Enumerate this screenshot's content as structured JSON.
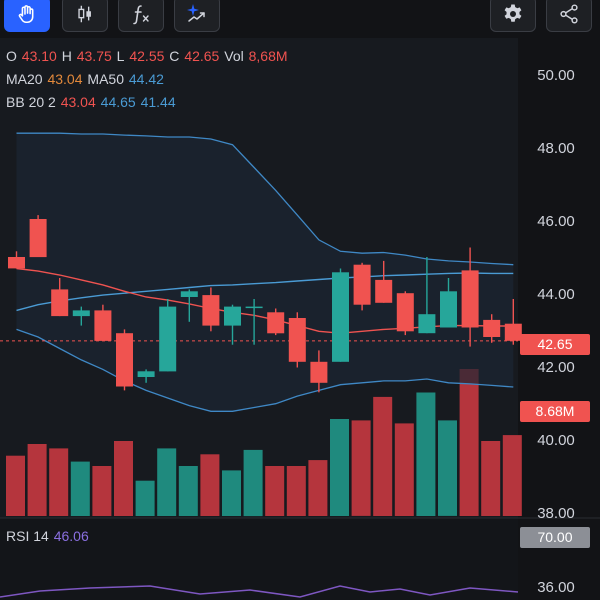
{
  "toolbar": {
    "icons": [
      "hand-pointer-icon",
      "candlestick-chart-icon",
      "function-icon",
      "ai-sparkle-icon",
      "gear-icon",
      "share-icon"
    ]
  },
  "legend": {
    "ohlc": {
      "o_label": "O",
      "o": "43.10",
      "h_label": "H",
      "h": "43.75",
      "l_label": "L",
      "l": "42.55",
      "c_label": "C",
      "c": "42.65",
      "vol_label": "Vol",
      "vol": "8,68M"
    },
    "ma": {
      "ma20_label": "MA20",
      "ma20": "43.04",
      "ma50_label": "MA50",
      "ma50": "44.42"
    },
    "bb": {
      "label": "BB 20 2",
      "middle": "43.04",
      "upper": "44.65",
      "lower": "41.44"
    },
    "rsi": {
      "label": "RSI 14",
      "value": "46.06"
    }
  },
  "price_axis": {
    "ticks": [
      "50.00",
      "48.00",
      "46.00",
      "44.00",
      "42.00",
      "40.00",
      "38.00"
    ],
    "last_price_tag": "42.65",
    "volume_tag": "8.68M"
  },
  "rsi_axis": {
    "ticks": [
      "70.00",
      "36.00"
    ]
  },
  "colors": {
    "up": "#26a69a",
    "down": "#f05350",
    "vol_up": "#1f8a7e",
    "vol_down": "#b5353d",
    "ma20": "#e3893b",
    "ma50": "#4a9bd4",
    "bollinger": "#3f88c5",
    "bb_mid": "#ef5350",
    "rsi": "#7e57c2"
  },
  "chart_data": {
    "type": "candlestick",
    "ylim": [
      38,
      50.6
    ],
    "candles": [
      {
        "o": 44.85,
        "h": 45.0,
        "l": 44.55,
        "c": 44.55
      },
      {
        "o": 45.85,
        "h": 45.95,
        "l": 44.85,
        "c": 44.85
      },
      {
        "o": 44.0,
        "h": 44.3,
        "l": 43.3,
        "c": 43.3
      },
      {
        "o": 43.3,
        "h": 43.55,
        "l": 43.05,
        "c": 43.45
      },
      {
        "o": 43.45,
        "h": 43.6,
        "l": 42.65,
        "c": 42.65
      },
      {
        "o": 42.85,
        "h": 42.95,
        "l": 41.35,
        "c": 41.45
      },
      {
        "o": 41.7,
        "h": 41.9,
        "l": 41.55,
        "c": 41.85
      },
      {
        "o": 41.85,
        "h": 43.75,
        "l": 41.85,
        "c": 43.55
      },
      {
        "o": 43.8,
        "h": 44.0,
        "l": 43.15,
        "c": 43.95
      },
      {
        "o": 43.85,
        "h": 44.05,
        "l": 42.9,
        "c": 43.05
      },
      {
        "o": 43.05,
        "h": 43.6,
        "l": 42.55,
        "c": 43.55
      },
      {
        "o": 43.55,
        "h": 43.75,
        "l": 42.55,
        "c": 43.55
      },
      {
        "o": 43.4,
        "h": 43.5,
        "l": 42.8,
        "c": 42.85
      },
      {
        "o": 43.25,
        "h": 43.4,
        "l": 41.95,
        "c": 42.1
      },
      {
        "o": 42.1,
        "h": 42.4,
        "l": 41.3,
        "c": 41.55
      },
      {
        "o": 42.1,
        "h": 44.55,
        "l": 42.1,
        "c": 44.45
      },
      {
        "o": 44.65,
        "h": 44.7,
        "l": 43.45,
        "c": 43.6
      },
      {
        "o": 44.25,
        "h": 44.75,
        "l": 43.65,
        "c": 43.65
      },
      {
        "o": 43.9,
        "h": 43.95,
        "l": 42.8,
        "c": 42.9
      },
      {
        "o": 42.85,
        "h": 44.85,
        "l": 42.85,
        "c": 43.35
      },
      {
        "o": 43.0,
        "h": 44.3,
        "l": 43.0,
        "c": 43.95
      },
      {
        "o": 44.5,
        "h": 45.1,
        "l": 42.5,
        "c": 43.0
      },
      {
        "o": 43.2,
        "h": 43.35,
        "l": 42.6,
        "c": 42.75
      },
      {
        "o": 43.1,
        "h": 43.75,
        "l": 42.55,
        "c": 42.65
      }
    ],
    "volume_ratio": [
      0.41,
      0.49,
      0.46,
      0.37,
      0.34,
      0.51,
      0.24,
      0.46,
      0.34,
      0.42,
      0.31,
      0.45,
      0.34,
      0.34,
      0.38,
      0.66,
      0.65,
      0.81,
      0.63,
      0.84,
      0.65,
      1.0,
      0.51,
      0.55
    ],
    "ma20": [
      44.55,
      44.48,
      44.38,
      44.25,
      44.12,
      43.95,
      43.8,
      43.72,
      43.62,
      43.5,
      43.4,
      43.32,
      43.2,
      43.05,
      42.9,
      42.85,
      42.9,
      42.95,
      42.98,
      43.02,
      43.05,
      43.05,
      43.04,
      43.04
    ],
    "ma50": [
      43.45,
      43.6,
      43.7,
      43.78,
      43.85,
      43.9,
      43.95,
      44.0,
      44.05,
      44.1,
      44.12,
      44.15,
      44.18,
      44.22,
      44.26,
      44.3,
      44.33,
      44.36,
      44.38,
      44.4,
      44.42,
      44.43,
      44.42,
      44.42
    ],
    "bb_upper": [
      48.1,
      48.1,
      48.1,
      48.08,
      48.08,
      48.05,
      48.03,
      48.0,
      48.0,
      47.95,
      47.8,
      47.2,
      46.6,
      45.95,
      45.3,
      45.0,
      44.95,
      44.97,
      44.9,
      44.8,
      44.75,
      44.72,
      44.68,
      44.65
    ],
    "bb_lower": [
      42.95,
      42.75,
      42.45,
      42.15,
      41.9,
      41.6,
      41.35,
      41.15,
      40.95,
      40.8,
      40.8,
      40.9,
      41.0,
      41.2,
      41.35,
      41.5,
      41.55,
      41.6,
      41.6,
      41.65,
      41.55,
      41.52,
      41.48,
      41.44
    ]
  }
}
